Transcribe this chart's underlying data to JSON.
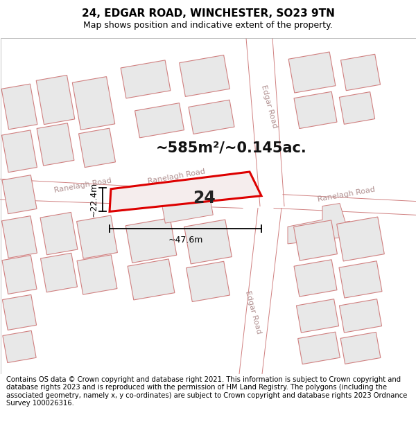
{
  "title": "24, EDGAR ROAD, WINCHESTER, SO23 9TN",
  "subtitle": "Map shows position and indicative extent of the property.",
  "footer": "Contains OS data © Crown copyright and database right 2021. This information is subject to Crown copyright and database rights 2023 and is reproduced with the permission of HM Land Registry. The polygons (including the associated geometry, namely x, y co-ordinates) are subject to Crown copyright and database rights 2023 Ordnance Survey 100026316.",
  "area_label": "~585m²/~0.145ac.",
  "width_label": "~47.6m",
  "height_label": "~22.4m",
  "plot_number": "24",
  "bg_color": "#ffffff",
  "map_bg": "#ffffff",
  "building_fill": "#e8e8e8",
  "building_edge": "#d08080",
  "road_line_color": "#d08080",
  "road_label_color": "#b09090",
  "highlight_fill": "#f5eded",
  "highlight_edge": "#dd0000",
  "dim_line_color": "#000000",
  "title_fontsize": 11,
  "subtitle_fontsize": 9,
  "footer_fontsize": 7.2,
  "area_fontsize": 15,
  "plot_num_fontsize": 17,
  "dim_fontsize": 9
}
